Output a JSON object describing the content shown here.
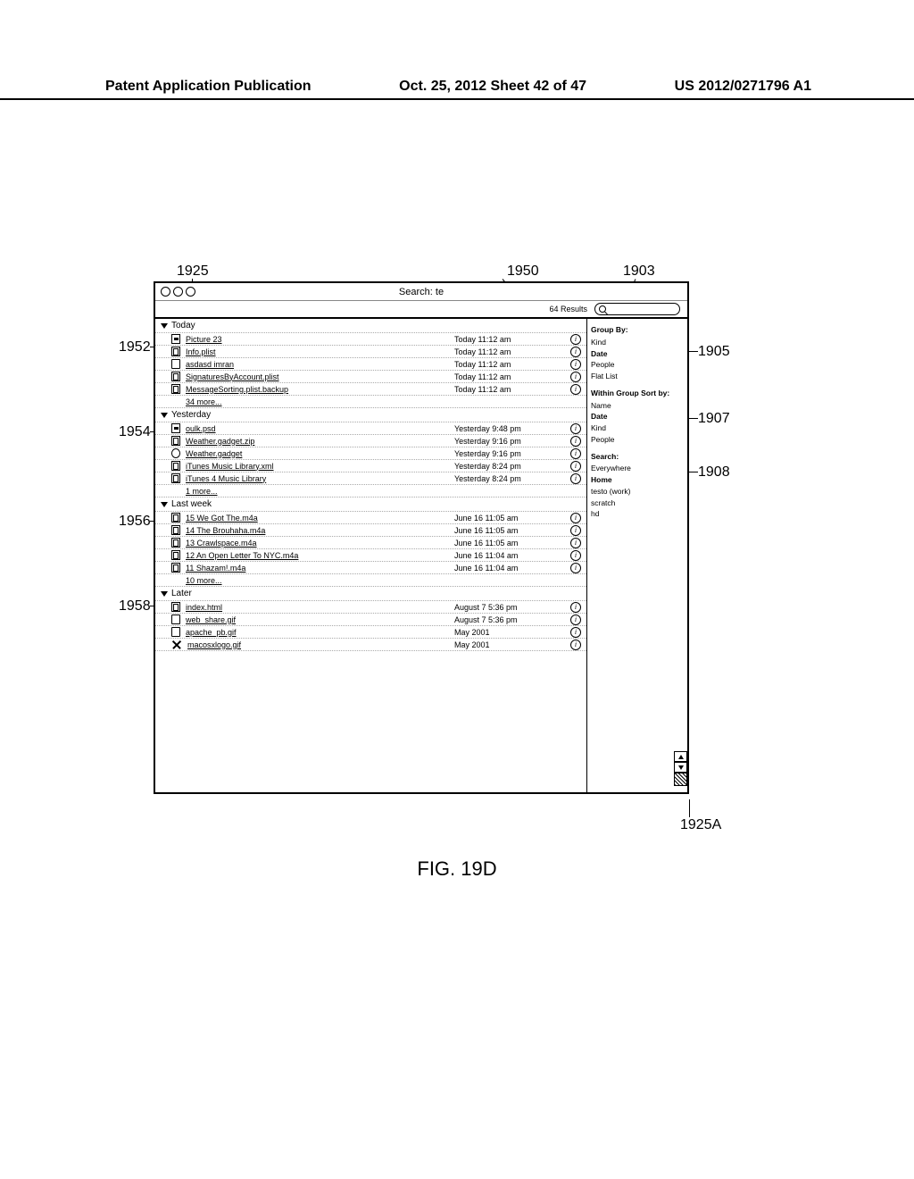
{
  "page_header": {
    "left": "Patent Application Publication",
    "center": "Oct. 25, 2012  Sheet 42 of 47",
    "right": "US 2012/0271796 A1"
  },
  "window": {
    "title": "Search: te",
    "results_count": "64 Results"
  },
  "sidebar": {
    "group_by": {
      "title": "Group By:",
      "items": [
        "Kind",
        "Date",
        "People",
        "Flat List"
      ],
      "bold_index": 1
    },
    "sort_by": {
      "title": "Within Group Sort by:",
      "items": [
        "Name",
        "Date",
        "Kind",
        "People"
      ],
      "bold_index": 1
    },
    "search_scope": {
      "title": "Search:",
      "items": [
        "Everywhere",
        "Home",
        "testo (work)",
        "scratch",
        "hd"
      ],
      "bold_index": 1
    }
  },
  "groups": [
    {
      "label": "Today",
      "more": "34 more...",
      "rows": [
        {
          "icon": "pict",
          "name": "Picture 23",
          "date": "Today 11:12 am"
        },
        {
          "icon": "doc",
          "name": "Info.plist",
          "date": "Today 11:12 am"
        },
        {
          "icon": "folder",
          "name": "asdasd  imran",
          "date": "Today 11:12 am"
        },
        {
          "icon": "doc",
          "name": "SignaturesByAccount.plist",
          "date": "Today 11:12 am"
        },
        {
          "icon": "doc",
          "name": "MessageSorting.plist.backup",
          "date": "Today 11:12 am"
        }
      ]
    },
    {
      "label": "Yesterday",
      "more": "1 more...",
      "rows": [
        {
          "icon": "pict",
          "name": "oulk.psd",
          "date": "Yesterday 9:48 pm"
        },
        {
          "icon": "doc",
          "name": "Weather.gadget.zip",
          "date": "Yesterday 9:16 pm"
        },
        {
          "icon": "circ",
          "name": "Weather.gadget",
          "date": "Yesterday 9:16 pm"
        },
        {
          "icon": "doc",
          "name": "iTunes Music Library.xml",
          "date": "Yesterday 8:24 pm"
        },
        {
          "icon": "doc",
          "name": "iTunes 4 Music Library",
          "date": "Yesterday 8:24 pm"
        }
      ]
    },
    {
      "label": "Last week",
      "more": "10 more...",
      "rows": [
        {
          "icon": "doc",
          "name": "15 We Got The.m4a",
          "date": "June 16 11:05 am"
        },
        {
          "icon": "doc",
          "name": "14 The Brouhaha.m4a",
          "date": "June 16 11:05 am"
        },
        {
          "icon": "doc",
          "name": "13 Crawlspace.m4a",
          "date": "June 16 11:05 am"
        },
        {
          "icon": "doc",
          "name": "12 An Open Letter To NYC.m4a",
          "date": "June 16 11:04 am"
        },
        {
          "icon": "doc",
          "name": "11 Shazam!.m4a",
          "date": "June 16 11:04 am"
        }
      ]
    },
    {
      "label": "Later",
      "more": null,
      "rows": [
        {
          "icon": "doc",
          "name": "index.html",
          "date": "August 7 5:36 pm"
        },
        {
          "icon": "folder",
          "name": "web_share.gif",
          "date": "August 7 5:36 pm"
        },
        {
          "icon": "folder",
          "name": "apache_pb.gif",
          "date": "May 2001"
        },
        {
          "icon": "x",
          "name": "macosxlogo.gif",
          "date": "May 2001"
        }
      ]
    }
  ],
  "refs": {
    "r1925": "1925",
    "r1950": "1950",
    "r1903": "1903",
    "r1952": "1952",
    "r1905": "1905",
    "r1954": "1954",
    "r1907": "1907",
    "r1956": "1956",
    "r1908": "1908",
    "r1958": "1958",
    "r1925A": "1925A"
  },
  "figure_caption": "FIG. 19D"
}
